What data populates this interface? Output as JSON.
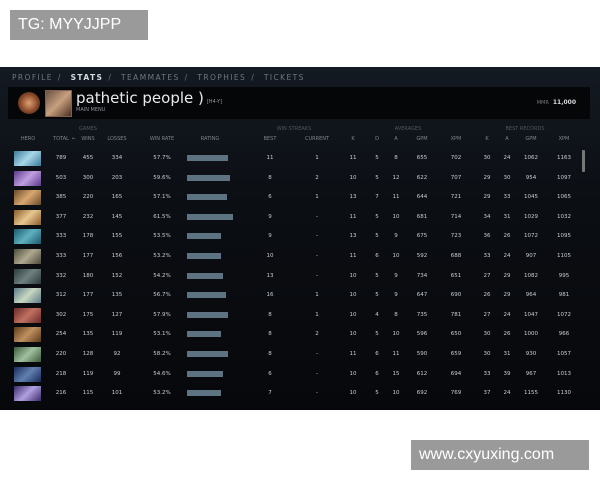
{
  "watermarks": {
    "top": "TG: MYYJJPP",
    "bottom": "www.cxyuxing.com"
  },
  "nav": [
    "PROFILE",
    "STATS",
    "TEAMMATES",
    "TROPHIES",
    "TICKETS"
  ],
  "nav_active": "STATS",
  "player": {
    "name": "pathetic people )",
    "tag": "[H4-Y]",
    "subtitle": "MAIN MENU",
    "mmr_label": "MMR",
    "mmr": "11,000"
  },
  "groups": {
    "games": "GAMES",
    "streaks": "WIN STREAKS",
    "averages": "AVERAGES",
    "records": "BEST RECORDS"
  },
  "columns": [
    "HERO",
    "TOTAL",
    "WINS",
    "LOSSES",
    "WIN RATE",
    "RATING",
    "BEST",
    "CURRENT",
    "K",
    "D",
    "A",
    "GPM",
    "XPM",
    "K",
    "A",
    "GPM",
    "XPM"
  ],
  "rows": [
    {
      "hero_colors": [
        "#3a7a9a",
        "#a8d8e8"
      ],
      "total": "789",
      "wins": "455",
      "losses": "334",
      "winrate": "57.7%",
      "rating": 0.82,
      "best": "11",
      "current": "1",
      "k": "11",
      "d": "5",
      "a": "8",
      "gpm": "655",
      "xpm": "702",
      "bk": "30",
      "ba": "24",
      "bgpm": "1062",
      "bxpm": "1163"
    },
    {
      "hero_colors": [
        "#5a3a8a",
        "#c0a0e0"
      ],
      "total": "503",
      "wins": "300",
      "losses": "203",
      "winrate": "59.6%",
      "rating": 0.86,
      "best": "8",
      "current": "2",
      "k": "10",
      "d": "5",
      "a": "12",
      "gpm": "622",
      "xpm": "707",
      "bk": "29",
      "ba": "30",
      "bgpm": "954",
      "bxpm": "1097"
    },
    {
      "hero_colors": [
        "#6a4a2a",
        "#d8a870"
      ],
      "total": "385",
      "wins": "220",
      "losses": "165",
      "winrate": "57.1%",
      "rating": 0.8,
      "best": "6",
      "current": "1",
      "k": "13",
      "d": "7",
      "a": "11",
      "gpm": "644",
      "xpm": "721",
      "bk": "29",
      "ba": "33",
      "bgpm": "1045",
      "bxpm": "1065"
    },
    {
      "hero_colors": [
        "#8a5a2a",
        "#e8c890"
      ],
      "total": "377",
      "wins": "232",
      "losses": "145",
      "winrate": "61.5%",
      "rating": 0.92,
      "best": "9",
      "current": "-",
      "k": "11",
      "d": "5",
      "a": "10",
      "gpm": "681",
      "xpm": "714",
      "bk": "34",
      "ba": "31",
      "bgpm": "1029",
      "bxpm": "1032"
    },
    {
      "hero_colors": [
        "#1a5a6a",
        "#60b0c0"
      ],
      "total": "333",
      "wins": "178",
      "losses": "155",
      "winrate": "53.5%",
      "rating": 0.68,
      "best": "9",
      "current": "-",
      "k": "13",
      "d": "5",
      "a": "9",
      "gpm": "675",
      "xpm": "723",
      "bk": "36",
      "ba": "26",
      "bgpm": "1072",
      "bxpm": "1095"
    },
    {
      "hero_colors": [
        "#4a4a3a",
        "#b0a890"
      ],
      "total": "333",
      "wins": "177",
      "losses": "156",
      "winrate": "53.2%",
      "rating": 0.68,
      "best": "10",
      "current": "-",
      "k": "11",
      "d": "6",
      "a": "10",
      "gpm": "592",
      "xpm": "688",
      "bk": "33",
      "ba": "24",
      "bgpm": "907",
      "bxpm": "1105"
    },
    {
      "hero_colors": [
        "#2a3a3a",
        "#708080"
      ],
      "total": "332",
      "wins": "180",
      "losses": "152",
      "winrate": "54.2%",
      "rating": 0.72,
      "best": "13",
      "current": "-",
      "k": "10",
      "d": "5",
      "a": "9",
      "gpm": "734",
      "xpm": "651",
      "bk": "27",
      "ba": "29",
      "bgpm": "1082",
      "bxpm": "995"
    },
    {
      "hero_colors": [
        "#5a7a8a",
        "#c8d8c0"
      ],
      "total": "312",
      "wins": "177",
      "losses": "135",
      "winrate": "56.7%",
      "rating": 0.78,
      "best": "16",
      "current": "1",
      "k": "10",
      "d": "5",
      "a": "9",
      "gpm": "647",
      "xpm": "690",
      "bk": "26",
      "ba": "29",
      "bgpm": "964",
      "bxpm": "981"
    },
    {
      "hero_colors": [
        "#6a2a2a",
        "#c07060"
      ],
      "total": "302",
      "wins": "175",
      "losses": "127",
      "winrate": "57.9%",
      "rating": 0.82,
      "best": "8",
      "current": "1",
      "k": "10",
      "d": "4",
      "a": "8",
      "gpm": "735",
      "xpm": "781",
      "bk": "27",
      "ba": "24",
      "bgpm": "1047",
      "bxpm": "1072"
    },
    {
      "hero_colors": [
        "#5a3a1a",
        "#c09060"
      ],
      "total": "254",
      "wins": "135",
      "losses": "119",
      "winrate": "53.1%",
      "rating": 0.68,
      "best": "8",
      "current": "2",
      "k": "10",
      "d": "5",
      "a": "10",
      "gpm": "596",
      "xpm": "650",
      "bk": "30",
      "ba": "26",
      "bgpm": "1000",
      "bxpm": "966"
    },
    {
      "hero_colors": [
        "#3a5a3a",
        "#a0c0a0"
      ],
      "total": "220",
      "wins": "128",
      "losses": "92",
      "winrate": "58.2%",
      "rating": 0.82,
      "best": "8",
      "current": "-",
      "k": "11",
      "d": "6",
      "a": "11",
      "gpm": "590",
      "xpm": "659",
      "bk": "30",
      "ba": "31",
      "bgpm": "930",
      "bxpm": "1057"
    },
    {
      "hero_colors": [
        "#1a2a5a",
        "#6080b0"
      ],
      "total": "218",
      "wins": "119",
      "losses": "99",
      "winrate": "54.6%",
      "rating": 0.72,
      "best": "6",
      "current": "-",
      "k": "10",
      "d": "6",
      "a": "15",
      "gpm": "612",
      "xpm": "694",
      "bk": "33",
      "ba": "39",
      "bgpm": "967",
      "bxpm": "1013"
    },
    {
      "hero_colors": [
        "#3a2a6a",
        "#b0a0e0"
      ],
      "total": "216",
      "wins": "115",
      "losses": "101",
      "winrate": "53.2%",
      "rating": 0.68,
      "best": "7",
      "current": "-",
      "k": "10",
      "d": "5",
      "a": "10",
      "gpm": "692",
      "xpm": "769",
      "bk": "37",
      "ba": "24",
      "bgpm": "1155",
      "bxpm": "1130"
    }
  ]
}
